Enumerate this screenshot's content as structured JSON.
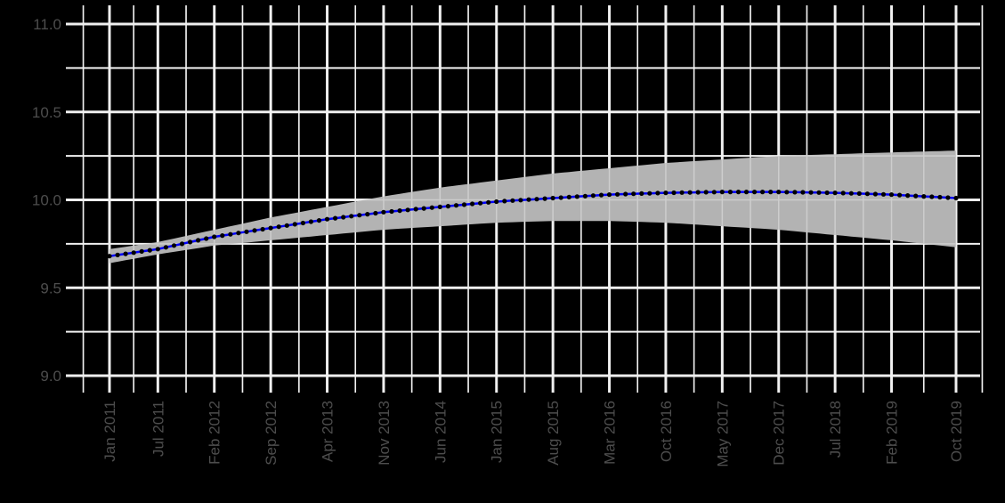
{
  "chart_data": {
    "type": "line",
    "title": "",
    "xlabel": "",
    "ylabel": "",
    "background": "#000000",
    "grid": true,
    "grid_color": "#ebebeb",
    "ylim": [
      8.95,
      11.05
    ],
    "yticks": [
      {
        "value": 9.0,
        "label": "9.0"
      },
      {
        "value": 9.5,
        "label": "9.5"
      },
      {
        "value": 10.0,
        "label": "10.0"
      },
      {
        "value": 10.5,
        "label": "10.5"
      },
      {
        "value": 11.0,
        "label": "11.0"
      }
    ],
    "y_minor": [
      9.25,
      9.75,
      10.25,
      10.75
    ],
    "xticks": [
      {
        "label": "Jan 2011",
        "month_index": 0
      },
      {
        "label": "Jul 2011",
        "month_index": 6
      },
      {
        "label": "Feb 2012",
        "month_index": 13
      },
      {
        "label": "Sep 2012",
        "month_index": 20
      },
      {
        "label": "Apr 2013",
        "month_index": 27
      },
      {
        "label": "Nov 2013",
        "month_index": 34
      },
      {
        "label": "Jun 2014",
        "month_index": 41
      },
      {
        "label": "Jan 2015",
        "month_index": 48
      },
      {
        "label": "Aug 2015",
        "month_index": 55
      },
      {
        "label": "Mar 2016",
        "month_index": 62
      },
      {
        "label": "Oct 2016",
        "month_index": 69
      },
      {
        "label": "May 2017",
        "month_index": 76
      },
      {
        "label": "Dec 2017",
        "month_index": 83
      },
      {
        "label": "Jul 2018",
        "month_index": 90
      },
      {
        "label": "Feb 2019",
        "month_index": 97
      },
      {
        "label": "Oct 2019",
        "month_index": 105
      }
    ],
    "x_start": "Jan 2011",
    "x_end": "Oct 2019",
    "n_points": 106,
    "series": [
      {
        "name": "fit",
        "line_color": "#0000ff",
        "point_color": "#000000",
        "anchors": [
          {
            "month_index": 0,
            "value": 9.68
          },
          {
            "month_index": 6,
            "value": 9.72
          },
          {
            "month_index": 13,
            "value": 9.79
          },
          {
            "month_index": 20,
            "value": 9.84
          },
          {
            "month_index": 27,
            "value": 9.89
          },
          {
            "month_index": 34,
            "value": 9.93
          },
          {
            "month_index": 41,
            "value": 9.96
          },
          {
            "month_index": 48,
            "value": 9.99
          },
          {
            "month_index": 55,
            "value": 10.01
          },
          {
            "month_index": 62,
            "value": 10.03
          },
          {
            "month_index": 69,
            "value": 10.04
          },
          {
            "month_index": 76,
            "value": 10.045
          },
          {
            "month_index": 83,
            "value": 10.045
          },
          {
            "month_index": 90,
            "value": 10.04
          },
          {
            "month_index": 97,
            "value": 10.03
          },
          {
            "month_index": 105,
            "value": 10.01
          }
        ]
      }
    ],
    "ribbon": {
      "name": "confidence-band",
      "color": "#b3b3b3",
      "anchors": [
        {
          "month_index": 0,
          "lower": 9.64,
          "upper": 9.72
        },
        {
          "month_index": 6,
          "lower": 9.69,
          "upper": 9.76
        },
        {
          "month_index": 13,
          "lower": 9.74,
          "upper": 9.83
        },
        {
          "month_index": 20,
          "lower": 9.77,
          "upper": 9.9
        },
        {
          "month_index": 27,
          "lower": 9.8,
          "upper": 9.96
        },
        {
          "month_index": 34,
          "lower": 9.83,
          "upper": 10.02
        },
        {
          "month_index": 41,
          "lower": 9.85,
          "upper": 10.07
        },
        {
          "month_index": 48,
          "lower": 9.87,
          "upper": 10.11
        },
        {
          "month_index": 55,
          "lower": 9.88,
          "upper": 10.15
        },
        {
          "month_index": 62,
          "lower": 9.88,
          "upper": 10.18
        },
        {
          "month_index": 69,
          "lower": 9.87,
          "upper": 10.21
        },
        {
          "month_index": 76,
          "lower": 9.85,
          "upper": 10.23
        },
        {
          "month_index": 83,
          "lower": 9.83,
          "upper": 10.25
        },
        {
          "month_index": 90,
          "lower": 9.8,
          "upper": 10.26
        },
        {
          "month_index": 97,
          "lower": 9.77,
          "upper": 10.27
        },
        {
          "month_index": 105,
          "lower": 9.73,
          "upper": 10.28
        }
      ]
    }
  }
}
